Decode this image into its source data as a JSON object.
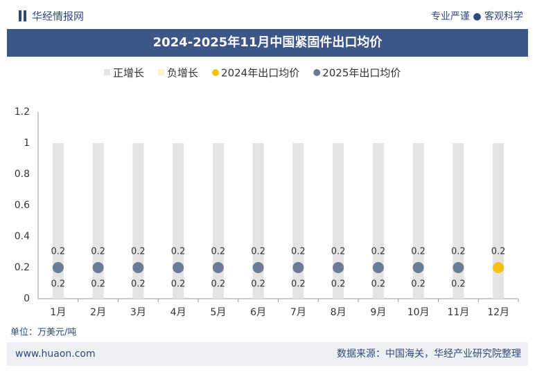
{
  "header": {
    "brand": "华经情报网",
    "slogan": "专业严谨 ● 客观科学"
  },
  "chart_data": {
    "type": "bar",
    "title": "2024-2025年11月中国紧固件出口均价",
    "categories": [
      "1月",
      "2月",
      "3月",
      "4月",
      "5月",
      "6月",
      "7月",
      "8月",
      "9月",
      "10月",
      "11月",
      "12月"
    ],
    "series": [
      {
        "name": "正增长",
        "type": "bar",
        "color": "#e4e4e4",
        "values": [
          1,
          1,
          1,
          1,
          1,
          1,
          1,
          1,
          1,
          1,
          1,
          1
        ]
      },
      {
        "name": "负增长",
        "type": "bar",
        "color": "#fbf3d0",
        "values": [
          null,
          null,
          null,
          null,
          null,
          null,
          null,
          null,
          null,
          null,
          null,
          null
        ]
      },
      {
        "name": "2024年出口均价",
        "type": "scatter",
        "color": "#f5c116",
        "values": [
          0.2,
          0.2,
          0.2,
          0.2,
          0.2,
          0.2,
          0.2,
          0.2,
          0.2,
          0.2,
          0.2,
          0.2
        ]
      },
      {
        "name": "2025年出口均价",
        "type": "scatter",
        "color": "#6a7b99",
        "values": [
          0.2,
          0.2,
          0.2,
          0.2,
          0.2,
          0.2,
          0.2,
          0.2,
          0.2,
          0.2,
          0.2,
          null
        ]
      }
    ],
    "ylim": [
      0,
      1.2
    ],
    "yticks": [
      0,
      0.2,
      0.4,
      0.6,
      0.8,
      1,
      1.2
    ],
    "grid": false,
    "unit": "单位：万美元/吨"
  },
  "footer": {
    "site": "www.huaon.com",
    "source": "数据来源：中国海关，华经产业研究院整理"
  }
}
